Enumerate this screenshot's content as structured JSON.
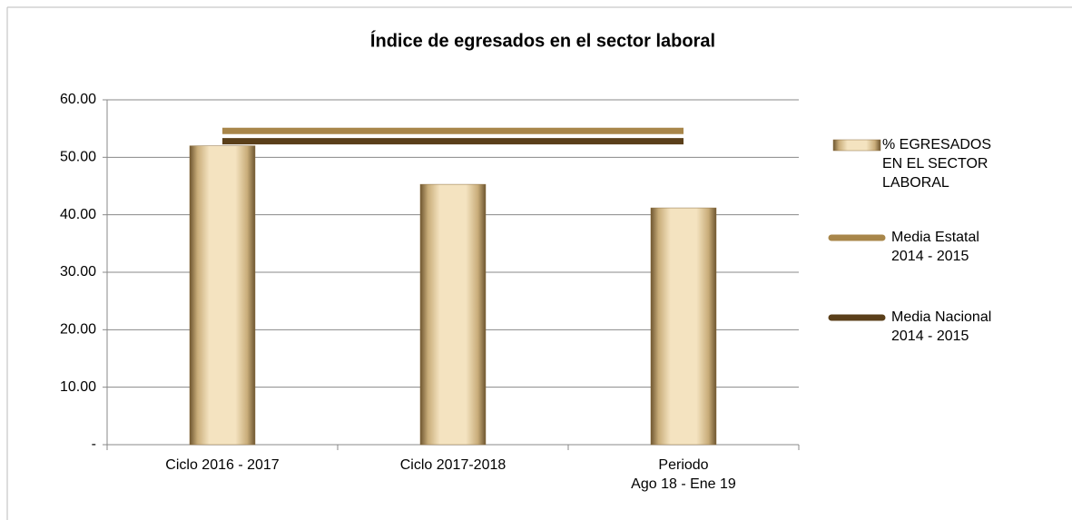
{
  "chart_data": {
    "type": "bar",
    "title": "Índice de egresados en el sector laboral",
    "categories": [
      "Ciclo 2016 - 2017",
      "Ciclo 2017-2018",
      "Periodo\nAgo 18 - Ene 19"
    ],
    "series": [
      {
        "name": "% EGRESADOS EN EL SECTOR LABORAL",
        "type": "bar",
        "color": "#ecd7ab",
        "values": [
          52.0,
          45.3,
          41.2
        ]
      },
      {
        "name": "Media Estatal\n2014 - 2015",
        "type": "line",
        "color": "#a8864a",
        "values": [
          54.6,
          54.6,
          54.6
        ]
      },
      {
        "name": "Media Nacional\n2014 - 2015",
        "type": "line",
        "color": "#5a3f1a",
        "values": [
          52.8,
          52.8,
          52.8
        ]
      }
    ],
    "ylim": [
      0,
      60
    ],
    "yticks": [
      {
        "value": 0,
        "label": "-"
      },
      {
        "value": 10,
        "label": "10.00"
      },
      {
        "value": 20,
        "label": "20.00"
      },
      {
        "value": 30,
        "label": "30.00"
      },
      {
        "value": 40,
        "label": "40.00"
      },
      {
        "value": 50,
        "label": "50.00"
      },
      {
        "value": 60,
        "label": "60.00"
      }
    ],
    "grid": true,
    "legend": "right"
  }
}
